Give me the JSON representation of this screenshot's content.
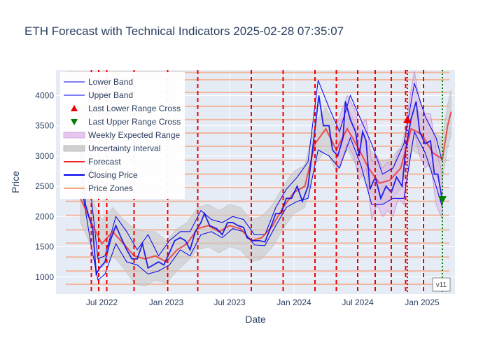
{
  "chart_data": {
    "type": "line",
    "title": "ETH Forecast with Technical Indicators 2025-02-28 07:35:07",
    "xlabel": "Date",
    "ylabel": "Price",
    "xlim": [
      "2022-02-20",
      "2025-04-05"
    ],
    "ylim": [
      720,
      4420
    ],
    "x_ticks": [
      {
        "date": "2022-07-01",
        "label": "Jul 2022"
      },
      {
        "date": "2023-01-01",
        "label": "Jan 2023"
      },
      {
        "date": "2023-07-01",
        "label": "Jul 2023"
      },
      {
        "date": "2024-01-01",
        "label": "Jan 2024"
      },
      {
        "date": "2024-07-01",
        "label": "Jul 2024"
      },
      {
        "date": "2025-01-01",
        "label": "Jan 2025"
      }
    ],
    "y_ticks": [
      1000,
      1500,
      2000,
      2500,
      3000,
      3500,
      4000
    ],
    "grid": true,
    "legend_position": "top-left",
    "legend": [
      {
        "name": "Lower Band",
        "kind": "line",
        "color": "#0000ee",
        "width": 1
      },
      {
        "name": "Upper Band",
        "kind": "line",
        "color": "#0000ee",
        "width": 1
      },
      {
        "name": "Last Lower Range Cross",
        "kind": "tri-up",
        "color": "#ee0000"
      },
      {
        "name": "Last Upper Range Cross",
        "kind": "tri-down",
        "color": "#008000"
      },
      {
        "name": "Weekly Expected Range",
        "kind": "band",
        "color": "#e6c6ee",
        "stroke": "#c8a0d8"
      },
      {
        "name": "Uncertainty Interval",
        "kind": "band",
        "color": "#d0d0d0",
        "stroke": "#b0b0b0"
      },
      {
        "name": "Forecast",
        "kind": "line",
        "color": "#ee2222",
        "width": 2
      },
      {
        "name": "Closing Price",
        "kind": "line",
        "color": "#0000ee",
        "width": 2
      },
      {
        "name": "Price Zones",
        "kind": "line",
        "color": "#f4a582",
        "width": 2
      }
    ],
    "price_zones": [
      880,
      1100,
      1330,
      1560,
      1780,
      2020,
      2250,
      2480,
      2700,
      2930,
      3160,
      3380,
      3600,
      3820,
      4050,
      4260,
      4380
    ],
    "vertical_events": [
      "2022-06-01",
      "2022-06-22",
      "2022-07-15",
      "2022-10-01",
      "2023-01-05",
      "2023-04-01",
      "2023-09-01",
      "2023-12-01",
      "2024-03-01",
      "2024-05-01",
      "2024-07-01",
      "2024-08-20",
      "2024-10-05",
      "2024-11-15",
      "2025-01-05"
    ],
    "last_lower_range_cross": {
      "date": "2024-11-20",
      "price": 3600,
      "color": "#ee0000"
    },
    "last_upper_range_cross": {
      "date": "2025-02-28",
      "price": 2280,
      "color": "#008000"
    },
    "current_date": "2025-02-28",
    "closing_price": [
      [
        "2022-05-01",
        3100
      ],
      [
        "2022-05-15",
        2200
      ],
      [
        "2022-05-25",
        2000
      ],
      [
        "2022-06-05",
        1800
      ],
      [
        "2022-06-15",
        1050
      ],
      [
        "2022-06-25",
        1150
      ],
      [
        "2022-07-10",
        1250
      ],
      [
        "2022-07-25",
        1600
      ],
      [
        "2022-08-10",
        1850
      ],
      [
        "2022-08-25",
        1650
      ],
      [
        "2022-09-10",
        1450
      ],
      [
        "2022-09-25",
        1300
      ],
      [
        "2022-10-10",
        1300
      ],
      [
        "2022-10-25",
        1550
      ],
      [
        "2022-11-10",
        1150
      ],
      [
        "2022-11-25",
        1200
      ],
      [
        "2022-12-10",
        1250
      ],
      [
        "2022-12-25",
        1200
      ],
      [
        "2023-01-10",
        1400
      ],
      [
        "2023-01-25",
        1600
      ],
      [
        "2023-02-10",
        1650
      ],
      [
        "2023-02-25",
        1600
      ],
      [
        "2023-03-10",
        1450
      ],
      [
        "2023-03-25",
        1750
      ],
      [
        "2023-04-10",
        1900
      ],
      [
        "2023-04-20",
        2050
      ],
      [
        "2023-05-05",
        1850
      ],
      [
        "2023-05-25",
        1800
      ],
      [
        "2023-06-10",
        1700
      ],
      [
        "2023-06-25",
        1900
      ],
      [
        "2023-07-10",
        1900
      ],
      [
        "2023-07-25",
        1850
      ],
      [
        "2023-08-10",
        1820
      ],
      [
        "2023-08-20",
        1650
      ],
      [
        "2023-09-05",
        1600
      ],
      [
        "2023-09-25",
        1600
      ],
      [
        "2023-10-10",
        1580
      ],
      [
        "2023-10-25",
        1800
      ],
      [
        "2023-11-10",
        2050
      ],
      [
        "2023-11-25",
        2050
      ],
      [
        "2023-12-10",
        2300
      ],
      [
        "2023-12-25",
        2300
      ],
      [
        "2024-01-10",
        2500
      ],
      [
        "2024-01-25",
        2250
      ],
      [
        "2024-02-10",
        2500
      ],
      [
        "2024-02-25",
        3200
      ],
      [
        "2024-03-12",
        4000
      ],
      [
        "2024-03-25",
        3500
      ],
      [
        "2024-04-10",
        3500
      ],
      [
        "2024-04-20",
        3100
      ],
      [
        "2024-05-05",
        3000
      ],
      [
        "2024-05-20",
        3300
      ],
      [
        "2024-05-27",
        3900
      ],
      [
        "2024-06-10",
        3600
      ],
      [
        "2024-06-25",
        3400
      ],
      [
        "2024-07-05",
        3000
      ],
      [
        "2024-07-15",
        3400
      ],
      [
        "2024-07-25",
        3250
      ],
      [
        "2024-08-05",
        2450
      ],
      [
        "2024-08-20",
        2650
      ],
      [
        "2024-09-05",
        2300
      ],
      [
        "2024-09-20",
        2500
      ],
      [
        "2024-10-05",
        2400
      ],
      [
        "2024-10-20",
        2650
      ],
      [
        "2024-11-05",
        2500
      ],
      [
        "2024-11-15",
        3100
      ],
      [
        "2024-11-30",
        3600
      ],
      [
        "2024-12-15",
        3900
      ],
      [
        "2024-12-25",
        3400
      ],
      [
        "2025-01-10",
        3200
      ],
      [
        "2025-01-25",
        3250
      ],
      [
        "2025-02-05",
        2700
      ],
      [
        "2025-02-15",
        2700
      ],
      [
        "2025-02-28",
        2250
      ]
    ],
    "lower_band": [
      [
        "2022-05-01",
        2600
      ],
      [
        "2022-06-01",
        1500
      ],
      [
        "2022-06-20",
        950
      ],
      [
        "2022-07-10",
        1050
      ],
      [
        "2022-08-10",
        1550
      ],
      [
        "2022-09-10",
        1250
      ],
      [
        "2022-10-10",
        1200
      ],
      [
        "2022-11-10",
        1050
      ],
      [
        "2022-12-10",
        1100
      ],
      [
        "2023-01-10",
        1200
      ],
      [
        "2023-02-10",
        1450
      ],
      [
        "2023-03-10",
        1350
      ],
      [
        "2023-04-10",
        1700
      ],
      [
        "2023-05-10",
        1750
      ],
      [
        "2023-06-10",
        1650
      ],
      [
        "2023-07-10",
        1800
      ],
      [
        "2023-08-10",
        1750
      ],
      [
        "2023-09-10",
        1530
      ],
      [
        "2023-10-10",
        1520
      ],
      [
        "2023-11-10",
        1850
      ],
      [
        "2023-12-10",
        2150
      ],
      [
        "2024-01-10",
        2250
      ],
      [
        "2024-02-10",
        2300
      ],
      [
        "2024-03-10",
        3100
      ],
      [
        "2024-04-10",
        3000
      ],
      [
        "2024-05-10",
        2800
      ],
      [
        "2024-06-10",
        3300
      ],
      [
        "2024-07-10",
        2850
      ],
      [
        "2024-08-10",
        2200
      ],
      [
        "2024-09-10",
        2200
      ],
      [
        "2024-10-10",
        2300
      ],
      [
        "2024-11-10",
        2300
      ],
      [
        "2024-12-10",
        3400
      ],
      [
        "2025-01-10",
        3050
      ],
      [
        "2025-02-10",
        2500
      ],
      [
        "2025-02-28",
        2150
      ]
    ],
    "upper_band": [
      [
        "2022-05-01",
        3300
      ],
      [
        "2022-06-01",
        2300
      ],
      [
        "2022-06-20",
        1300
      ],
      [
        "2022-07-10",
        1350
      ],
      [
        "2022-08-10",
        2000
      ],
      [
        "2022-09-10",
        1750
      ],
      [
        "2022-10-10",
        1450
      ],
      [
        "2022-11-10",
        1700
      ],
      [
        "2022-12-10",
        1350
      ],
      [
        "2023-01-10",
        1600
      ],
      [
        "2023-02-10",
        1750
      ],
      [
        "2023-03-10",
        1750
      ],
      [
        "2023-04-10",
        2100
      ],
      [
        "2023-05-10",
        1950
      ],
      [
        "2023-06-10",
        1900
      ],
      [
        "2023-07-10",
        2000
      ],
      [
        "2023-08-10",
        1950
      ],
      [
        "2023-09-10",
        1700
      ],
      [
        "2023-10-10",
        1700
      ],
      [
        "2023-11-10",
        2150
      ],
      [
        "2023-12-10",
        2450
      ],
      [
        "2024-01-10",
        2650
      ],
      [
        "2024-02-10",
        2900
      ],
      [
        "2024-03-10",
        4250
      ],
      [
        "2024-04-10",
        3800
      ],
      [
        "2024-05-10",
        3400
      ],
      [
        "2024-06-10",
        4000
      ],
      [
        "2024-07-10",
        3600
      ],
      [
        "2024-08-10",
        3200
      ],
      [
        "2024-09-10",
        2700
      ],
      [
        "2024-10-10",
        2800
      ],
      [
        "2024-11-10",
        3200
      ],
      [
        "2024-12-10",
        4200
      ],
      [
        "2025-01-10",
        3650
      ],
      [
        "2025-02-10",
        3300
      ],
      [
        "2025-02-28",
        2900
      ]
    ],
    "forecast": [
      [
        "2022-05-01",
        2300
      ],
      [
        "2022-06-01",
        1900
      ],
      [
        "2022-07-01",
        1550
      ],
      [
        "2022-08-01",
        1750
      ],
      [
        "2022-09-01",
        1550
      ],
      [
        "2022-10-01",
        1350
      ],
      [
        "2022-11-01",
        1300
      ],
      [
        "2022-12-01",
        1350
      ],
      [
        "2023-01-01",
        1250
      ],
      [
        "2023-02-01",
        1450
      ],
      [
        "2023-03-01",
        1550
      ],
      [
        "2023-04-01",
        1800
      ],
      [
        "2023-05-01",
        1850
      ],
      [
        "2023-06-01",
        1750
      ],
      [
        "2023-07-01",
        1850
      ],
      [
        "2023-08-01",
        1800
      ],
      [
        "2023-09-01",
        1600
      ],
      [
        "2023-10-01",
        1650
      ],
      [
        "2023-11-01",
        1850
      ],
      [
        "2023-12-01",
        2150
      ],
      [
        "2024-01-01",
        2400
      ],
      [
        "2024-02-01",
        2500
      ],
      [
        "2024-03-01",
        3200
      ],
      [
        "2024-04-01",
        3450
      ],
      [
        "2024-05-01",
        3100
      ],
      [
        "2024-06-01",
        3450
      ],
      [
        "2024-07-01",
        3150
      ],
      [
        "2024-08-01",
        2800
      ],
      [
        "2024-09-01",
        2550
      ],
      [
        "2024-10-01",
        2600
      ],
      [
        "2024-11-01",
        2800
      ],
      [
        "2024-12-01",
        3450
      ],
      [
        "2025-01-01",
        3350
      ],
      [
        "2025-02-01",
        3050
      ],
      [
        "2025-02-28",
        2950
      ],
      [
        "2025-03-15",
        3500
      ],
      [
        "2025-03-25",
        3730
      ]
    ],
    "uncertainty_interval": [
      [
        "2022-05-01",
        1900,
        2700
      ],
      [
        "2022-06-01",
        1500,
        2300
      ],
      [
        "2022-07-01",
        1150,
        1950
      ],
      [
        "2022-08-01",
        1350,
        2150
      ],
      [
        "2022-09-01",
        1150,
        1950
      ],
      [
        "2022-10-01",
        900,
        1800
      ],
      [
        "2022-11-01",
        850,
        1750
      ],
      [
        "2022-12-01",
        950,
        1750
      ],
      [
        "2023-01-01",
        900,
        1600
      ],
      [
        "2023-02-01",
        1100,
        1800
      ],
      [
        "2023-03-01",
        1250,
        1900
      ],
      [
        "2023-04-01",
        1450,
        2150
      ],
      [
        "2023-05-01",
        1500,
        2200
      ],
      [
        "2023-06-01",
        1400,
        2100
      ],
      [
        "2023-07-01",
        1500,
        2200
      ],
      [
        "2023-08-01",
        1450,
        2150
      ],
      [
        "2023-09-01",
        1250,
        1950
      ],
      [
        "2023-10-01",
        1300,
        2000
      ],
      [
        "2023-11-01",
        1500,
        2200
      ],
      [
        "2023-12-01",
        1800,
        2500
      ],
      [
        "2024-01-01",
        2050,
        2750
      ],
      [
        "2024-02-01",
        2150,
        2850
      ],
      [
        "2024-03-01",
        2850,
        3550
      ],
      [
        "2024-04-01",
        3100,
        3800
      ],
      [
        "2024-05-01",
        2750,
        3450
      ],
      [
        "2024-06-01",
        3100,
        3800
      ],
      [
        "2024-07-01",
        2800,
        3500
      ],
      [
        "2024-08-01",
        2450,
        3150
      ],
      [
        "2024-09-01",
        2200,
        2900
      ],
      [
        "2024-10-01",
        2250,
        2950
      ],
      [
        "2024-11-01",
        2450,
        3150
      ],
      [
        "2024-12-01",
        3100,
        3800
      ],
      [
        "2025-01-01",
        3000,
        3700
      ],
      [
        "2025-02-01",
        2700,
        3400
      ],
      [
        "2025-02-28",
        2600,
        3300
      ],
      [
        "2025-03-15",
        3150,
        3850
      ],
      [
        "2025-03-25",
        3350,
        4100
      ]
    ],
    "weekly_expected_range": [
      [
        "2024-05-01",
        2700,
        3500
      ],
      [
        "2024-05-20",
        3000,
        3800
      ],
      [
        "2024-06-01",
        3200,
        4000
      ],
      [
        "2024-06-20",
        3000,
        3800
      ],
      [
        "2024-07-05",
        2600,
        3500
      ],
      [
        "2024-07-25",
        2800,
        3600
      ],
      [
        "2024-08-10",
        1950,
        2900
      ],
      [
        "2024-08-25",
        2200,
        3000
      ],
      [
        "2024-09-10",
        2000,
        2800
      ],
      [
        "2024-09-25",
        2100,
        2900
      ],
      [
        "2024-10-10",
        2000,
        2800
      ],
      [
        "2024-10-25",
        2300,
        3100
      ],
      [
        "2024-11-10",
        2200,
        3100
      ],
      [
        "2024-11-25",
        2900,
        3900
      ],
      [
        "2024-12-10",
        3400,
        4400
      ],
      [
        "2024-12-25",
        3000,
        3900
      ],
      [
        "2025-01-10",
        2800,
        3700
      ],
      [
        "2025-01-25",
        2900,
        3700
      ],
      [
        "2025-02-10",
        2200,
        3100
      ],
      [
        "2025-02-28",
        1950,
        2700
      ]
    ]
  },
  "badge": {
    "text": "v11"
  }
}
